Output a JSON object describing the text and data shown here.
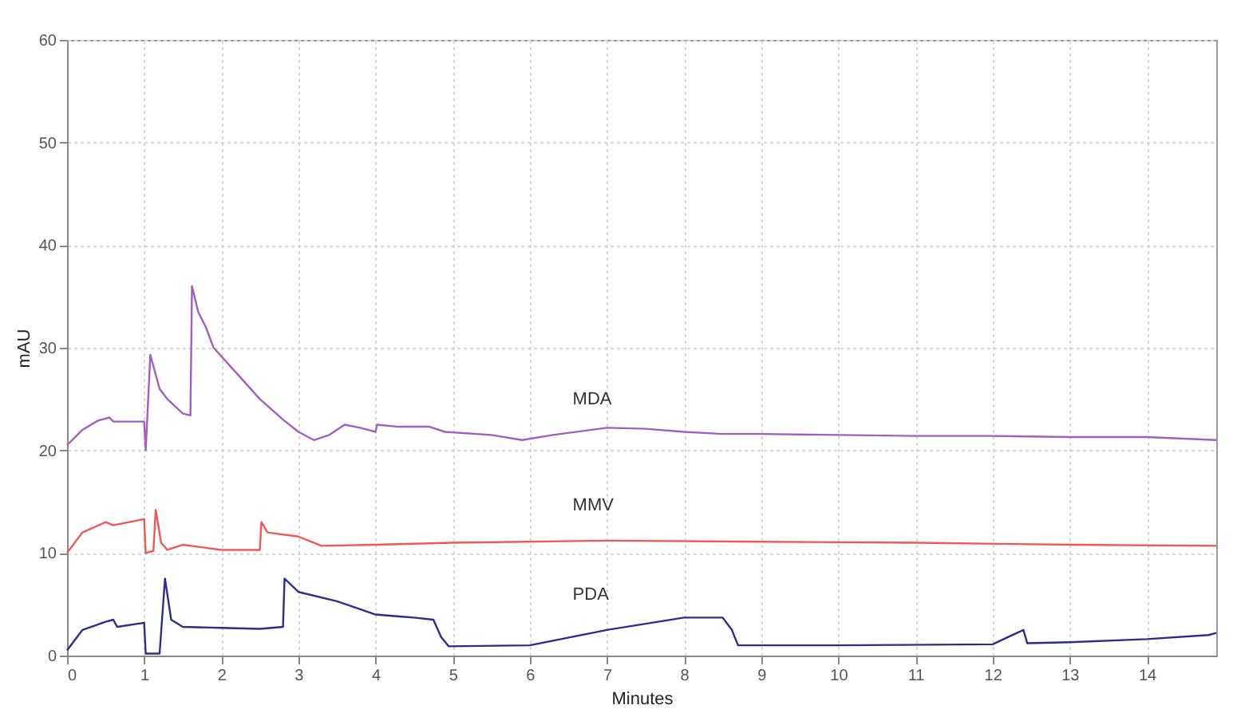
{
  "chart_data": {
    "type": "line",
    "xlabel": "Minutes",
    "ylabel": "mAU",
    "xlim": [
      0,
      14.9
    ],
    "ylim": [
      0,
      60
    ],
    "xticks": [
      0,
      1,
      2,
      3,
      4,
      5,
      6,
      7,
      8,
      9,
      10,
      11,
      12,
      13,
      14
    ],
    "yticks": [
      0,
      10,
      20,
      30,
      40,
      50,
      60
    ],
    "grid": true,
    "legend": false,
    "marker": "none",
    "line_style": "solid",
    "series": [
      {
        "name": "MDA",
        "color": "#a060c0",
        "x": [
          0,
          0.2,
          0.4,
          0.55,
          0.6,
          1.0,
          1.02,
          1.08,
          1.2,
          1.3,
          1.5,
          1.6,
          1.62,
          1.7,
          1.8,
          1.9,
          2.2,
          2.5,
          2.8,
          3.0,
          3.2,
          3.4,
          3.6,
          3.8,
          4.0,
          4.02,
          4.3,
          4.7,
          4.9,
          5.5,
          5.9,
          6.3,
          7,
          7.5,
          8,
          8.5,
          9,
          10,
          11,
          12,
          13,
          14,
          14.9
        ],
        "values": [
          20.5,
          22,
          22.9,
          23.2,
          22.8,
          22.8,
          20,
          29.3,
          26,
          25,
          23.6,
          23.4,
          36,
          33.5,
          32,
          30,
          27.5,
          25,
          23,
          21.8,
          21,
          21.5,
          22.5,
          22.2,
          21.8,
          22.5,
          22.3,
          22.3,
          21.8,
          21.5,
          21,
          21.5,
          22.2,
          22.1,
          21.8,
          21.6,
          21.6,
          21.5,
          21.4,
          21.4,
          21.3,
          21.3,
          21
        ]
      },
      {
        "name": "MMV",
        "color": "#f05858",
        "x": [
          0,
          0.2,
          0.5,
          0.6,
          1.0,
          1.02,
          1.12,
          1.15,
          1.22,
          1.3,
          1.5,
          2.0,
          2.5,
          2.52,
          2.6,
          3.0,
          3.3,
          4,
          5,
          7,
          9,
          11,
          13,
          14.9
        ],
        "values": [
          10,
          12,
          13,
          12.7,
          13.3,
          10,
          10.2,
          14.2,
          11,
          10.3,
          10.8,
          10.3,
          10.3,
          13,
          12,
          11.6,
          10.7,
          10.8,
          11,
          11.2,
          11.1,
          11,
          10.8,
          10.7
        ]
      },
      {
        "name": "PDA",
        "color": "#2c2c90",
        "x": [
          0,
          0.2,
          0.5,
          0.6,
          0.65,
          1.0,
          1.02,
          1.2,
          1.27,
          1.35,
          1.5,
          2.0,
          2.5,
          2.8,
          2.82,
          3.0,
          3.5,
          4.0,
          4.5,
          4.75,
          4.85,
          4.95,
          6,
          7,
          8,
          8.5,
          8.62,
          8.7,
          10,
          12,
          12.4,
          12.45,
          13,
          14,
          14.8,
          14.9
        ],
        "values": [
          0.5,
          2.5,
          3.3,
          3.5,
          2.8,
          3.2,
          0.2,
          0.2,
          7.5,
          3.5,
          2.8,
          2.7,
          2.6,
          2.8,
          7.5,
          6.2,
          5.3,
          4.0,
          3.7,
          3.5,
          1.8,
          0.9,
          1,
          2.5,
          3.7,
          3.7,
          2.5,
          1,
          1,
          1.1,
          2.5,
          1.2,
          1.3,
          1.6,
          2,
          2.2
        ]
      }
    ]
  }
}
